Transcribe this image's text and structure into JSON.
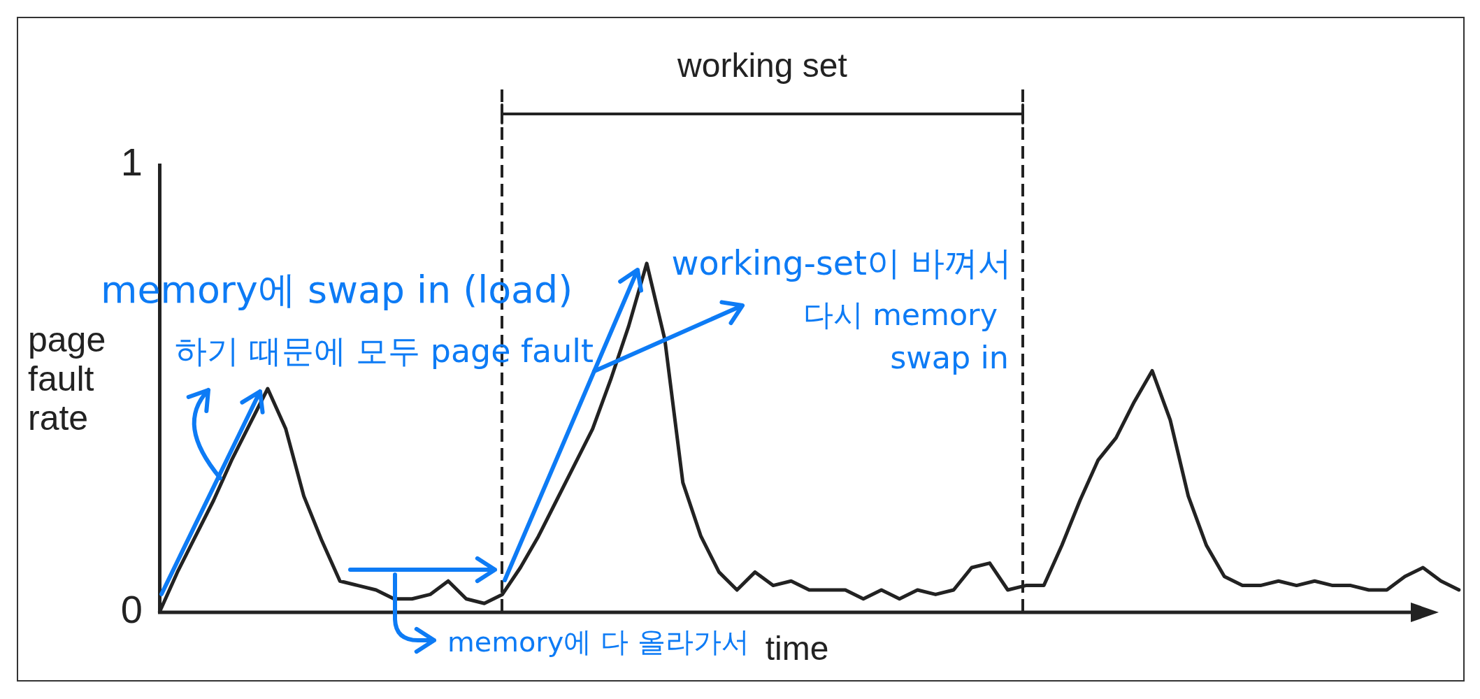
{
  "chart_data": {
    "type": "line",
    "ylabel": "page fault rate",
    "xlabel": "time",
    "annotations": [
      "working set",
      "memory에 swap in (load)",
      "하기 때문에 모두 page fault",
      "working-set이 바껴서",
      "다시 memory",
      "swap in",
      "memory에 다 올라가서"
    ],
    "categories": [
      null,
      null,
      null,
      null,
      null,
      null,
      null,
      null,
      null,
      null,
      null,
      null,
      null,
      null,
      null,
      null,
      null,
      null,
      null,
      null,
      null,
      null,
      null,
      null,
      null,
      null,
      null,
      null,
      null,
      null,
      null,
      null,
      null,
      null,
      null,
      null,
      null,
      null,
      null,
      null,
      null,
      null,
      null,
      null,
      null,
      null,
      null,
      null,
      null,
      null,
      null,
      null,
      null,
      null,
      null,
      null,
      null,
      null,
      null,
      null,
      null,
      null,
      null,
      null,
      null,
      null,
      null,
      null,
      null,
      null,
      null,
      null,
      null
    ],
    "series": [
      {
        "color": "#222222",
        "values": [
          0,
          0.09,
          0.17,
          0.25,
          0.34,
          0.42,
          0.5,
          0.41,
          0.26,
          0.16,
          0.07,
          0.06,
          0.05,
          0.03,
          0.03,
          0.04,
          0.07,
          0.03,
          0.02,
          0.04,
          0.1,
          0.17,
          0.25,
          0.33,
          0.41,
          0.52,
          0.64,
          0.78,
          0.61,
          0.29,
          0.17,
          0.09,
          0.05,
          0.09,
          0.06,
          0.07,
          0.05,
          0.05,
          0.05,
          0.03,
          0.05,
          0.03,
          0.05,
          0.04,
          0.05,
          0.1,
          0.11,
          0.05,
          0.06,
          0.06,
          0.15,
          0.25,
          0.34,
          0.39,
          0.47,
          0.54,
          0.43,
          0.26,
          0.15,
          0.08,
          0.06,
          0.06,
          0.07,
          0.06,
          0.07,
          0.06,
          0.06,
          0.05,
          0.05,
          0.08,
          0.1,
          0.07,
          0.05
        ]
      }
    ],
    "ylim": [
      0,
      1
    ],
    "yticks": [
      0,
      1
    ],
    "tick_labels": "y"
  }
}
